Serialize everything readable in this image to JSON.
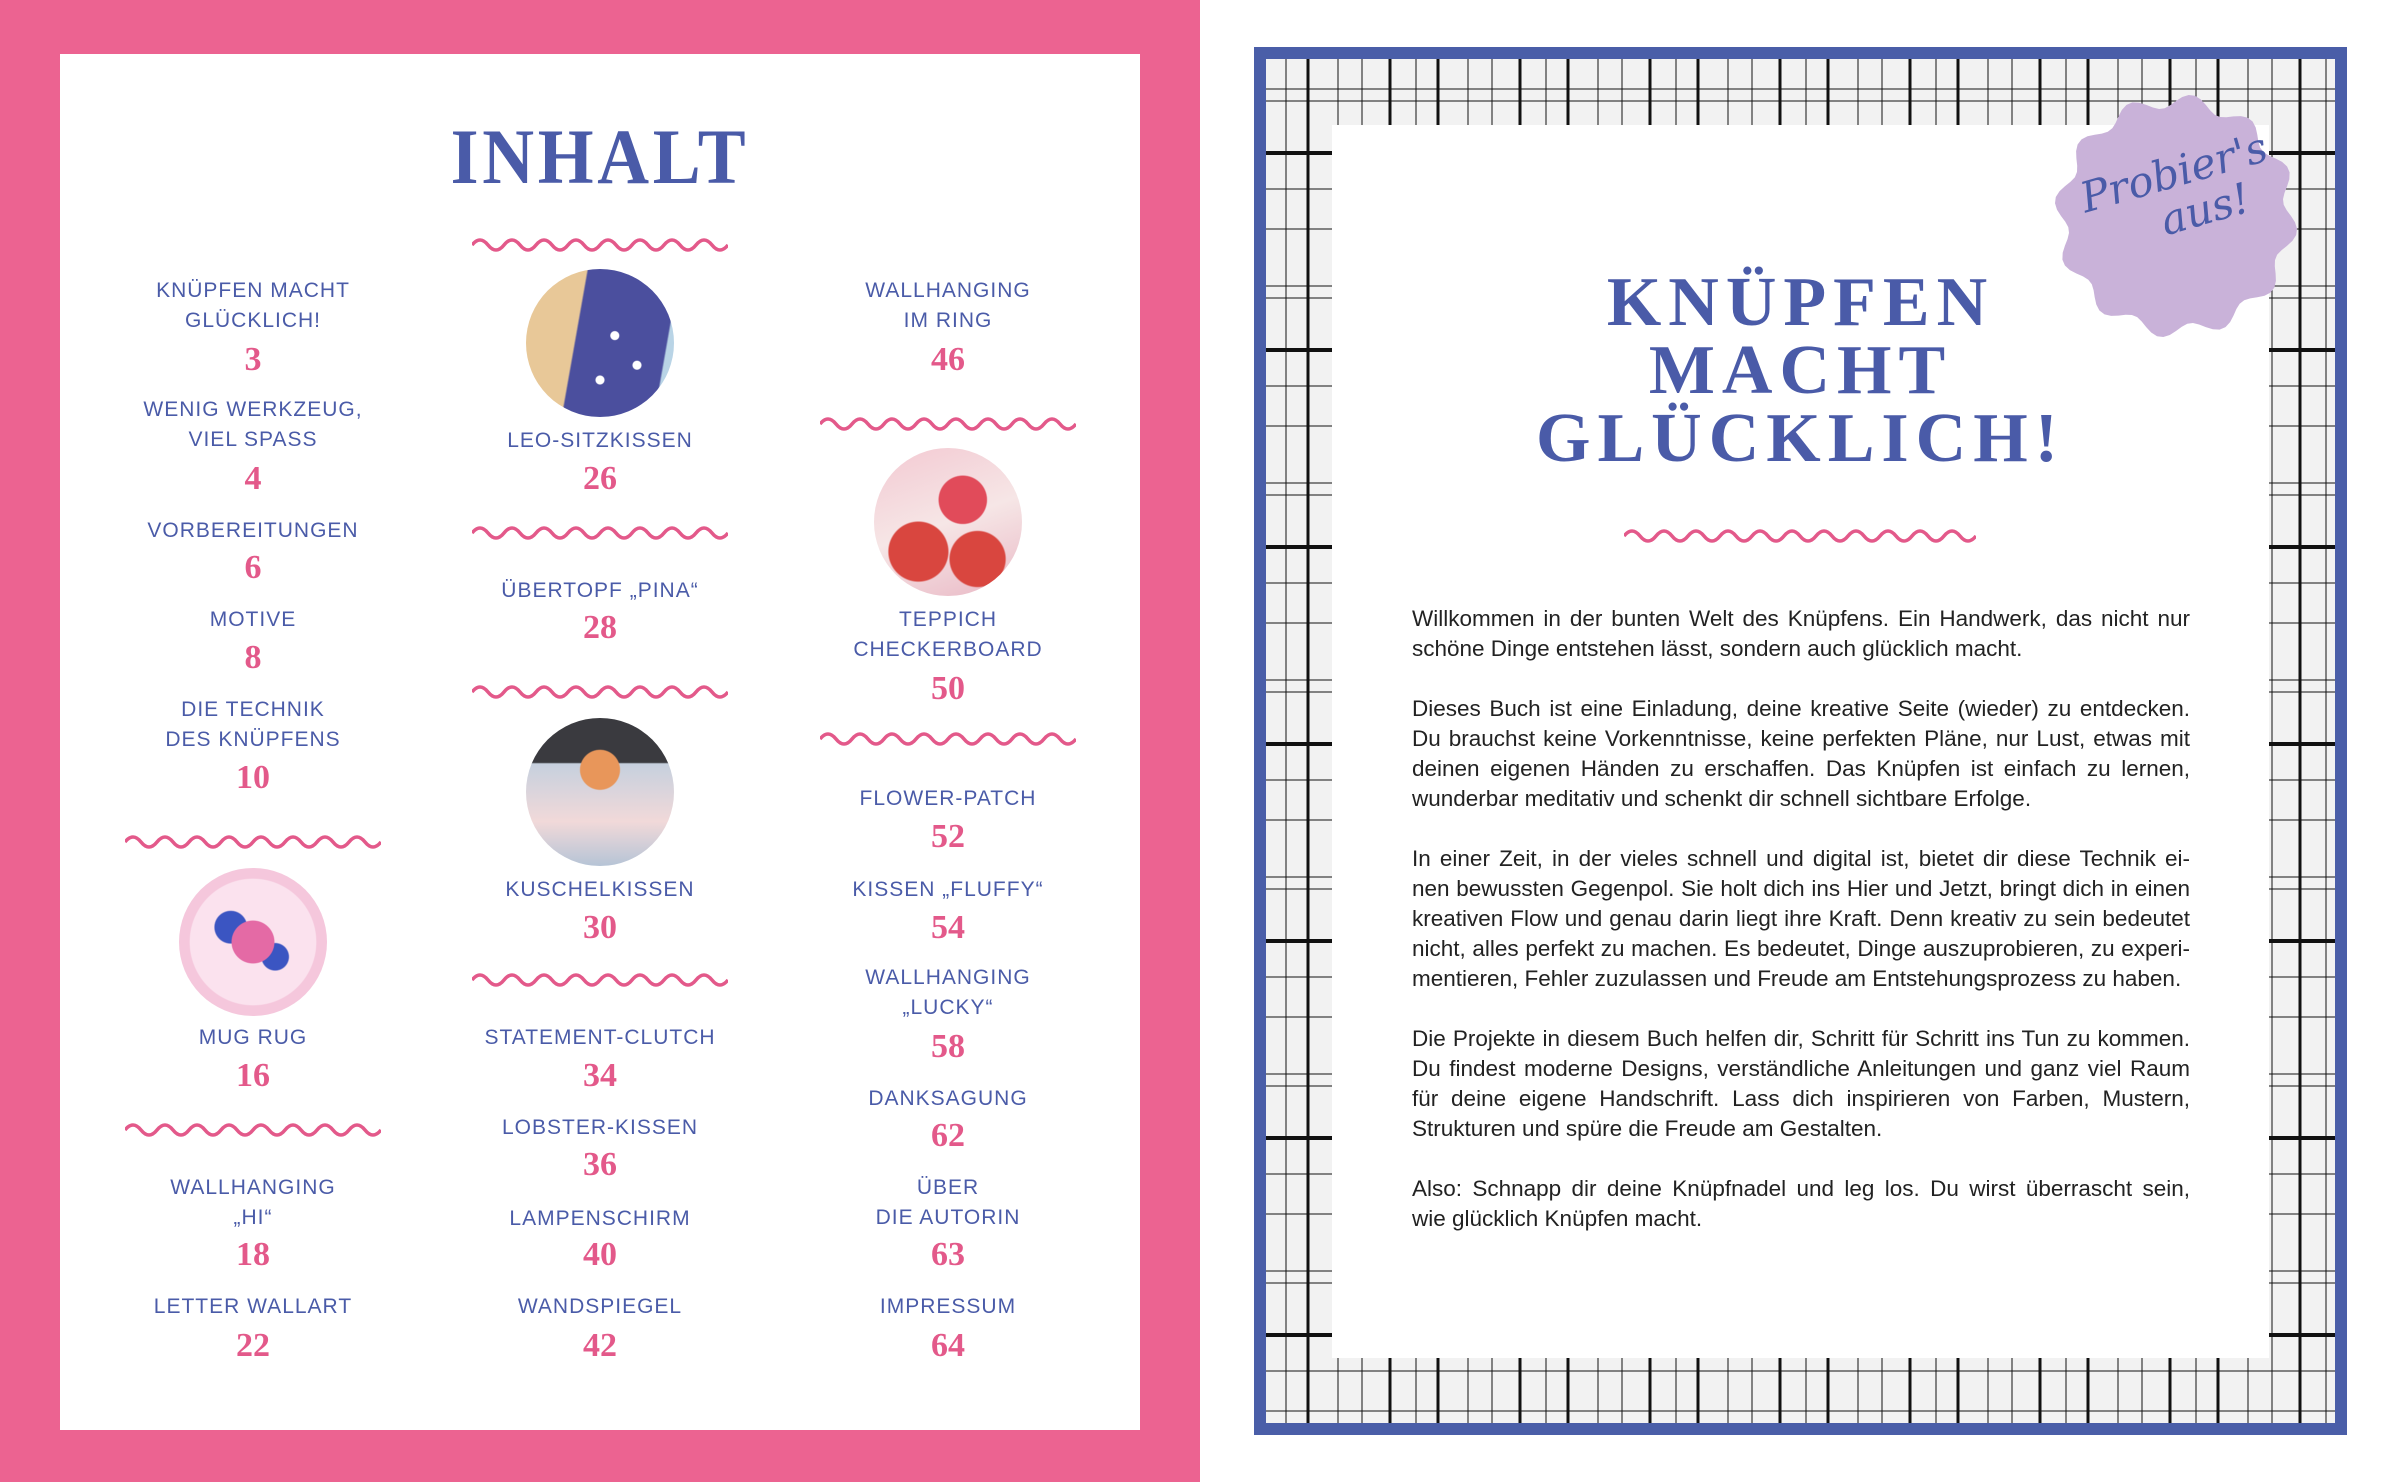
{
  "colors": {
    "pink_bg": "#ec6391",
    "blue": "#4a5ba8",
    "pink_accent": "#e3598a",
    "badge": "#c9b2d9",
    "plaid_bg": "#f2f2f2"
  },
  "toc": {
    "title": "INHALT",
    "columns": [
      [
        {
          "lines": [
            "KNÜPFEN MACHT",
            "GLÜCKLICH!"
          ],
          "page": "3"
        },
        {
          "lines": [
            "WENIG WERKZEUG,",
            "VIEL SPASS"
          ],
          "page": "4"
        },
        {
          "lines": [
            "VORBEREITUNGEN"
          ],
          "page": "6"
        },
        {
          "lines": [
            "MOTIVE"
          ],
          "page": "8"
        },
        {
          "lines": [
            "DIE TECHNIK",
            "DES KNÜPFENS"
          ],
          "page": "10"
        },
        {
          "lines": [
            "MUG RUG"
          ],
          "page": "16",
          "photo": "mug-rug-photo"
        },
        {
          "lines": [
            "WALLHANGING",
            "„HI“"
          ],
          "page": "18"
        },
        {
          "lines": [
            "LETTER WALLART"
          ],
          "page": "22"
        }
      ],
      [
        {
          "lines": [
            "LEO-SITZKISSEN"
          ],
          "page": "26",
          "photo": "leo-cushion-photo"
        },
        {
          "lines": [
            "ÜBERTOPF „PINA“"
          ],
          "page": "28"
        },
        {
          "lines": [
            "KUSCHELKISSEN"
          ],
          "page": "30",
          "photo": "cuddle-cushion-photo"
        },
        {
          "lines": [
            "STATEMENT-CLUTCH"
          ],
          "page": "34"
        },
        {
          "lines": [
            "LOBSTER-KISSEN"
          ],
          "page": "36"
        },
        {
          "lines": [
            "LAMPENSCHIRM"
          ],
          "page": "40"
        },
        {
          "lines": [
            "WANDSPIEGEL"
          ],
          "page": "42"
        }
      ],
      [
        {
          "lines": [
            "WALLHANGING",
            "IM RING"
          ],
          "page": "46"
        },
        {
          "lines": [
            "TEPPICH",
            "CHECKERBOARD"
          ],
          "page": "50",
          "photo": "checkerboard-rug-photo"
        },
        {
          "lines": [
            "FLOWER-PATCH"
          ],
          "page": "52"
        },
        {
          "lines": [
            "KISSEN „FLUFFY“"
          ],
          "page": "54"
        },
        {
          "lines": [
            "WALLHANGING",
            "„LUCKY“"
          ],
          "page": "58"
        },
        {
          "lines": [
            "DANKSAGUNG"
          ],
          "page": "62"
        },
        {
          "lines": [
            "ÜBER",
            "DIE AUTORIN"
          ],
          "page": "63"
        },
        {
          "lines": [
            "IMPRESSUM"
          ],
          "page": "64"
        }
      ]
    ]
  },
  "chapter": {
    "title_lines": [
      "KNÜPFEN",
      "MACHT",
      "GLÜCKLICH!"
    ],
    "badge_lines": [
      "Probier's",
      "aus!"
    ],
    "paragraphs": [
      [
        "Willkommen in der bunten Welt des Knüpfens. Ein Handwerk, das nicht nur",
        "schöne Dinge entstehen lässt, sondern auch glücklich macht."
      ],
      [
        "Dieses Buch ist eine Einladung, deine kreative Seite (wieder) zu entdecken.",
        "Du brauchst keine Vorkenntnisse, keine perfekten Pläne, nur Lust, etwas mit",
        "deinen eigenen Händen zu erschaffen. Das Knüpfen ist einfach zu lernen,",
        "wunderbar meditativ und schenkt dir schnell sichtbare Erfolge."
      ],
      [
        "In einer Zeit, in der vieles schnell und digital ist, bietet dir diese Technik ei-",
        "nen bewussten Gegenpol. Sie holt dich ins Hier und Jetzt, bringt dich in einen",
        "kreativen Flow und genau darin liegt ihre Kraft. Denn kreativ zu sein bedeutet",
        "nicht, alles perfekt zu machen. Es bedeutet, Dinge auszuprobieren, zu experi-",
        "mentieren, Fehler zuzulassen und Freude am Entstehungsprozess zu haben."
      ],
      [
        "Die Projekte in diesem Buch helfen dir, Schritt für Schritt ins Tun zu kommen.",
        "Du findest moderne Designs, verständliche Anleitungen und ganz viel Raum",
        "für deine eigene Handschrift. Lass dich inspirieren von Farben, Mustern,",
        "Strukturen und spüre die Freude am Gestalten."
      ],
      [
        "Also: Schnapp dir deine Knüpfnadel und leg los. Du wirst überrascht sein,",
        "wie glücklich Knüpfen macht."
      ]
    ]
  }
}
